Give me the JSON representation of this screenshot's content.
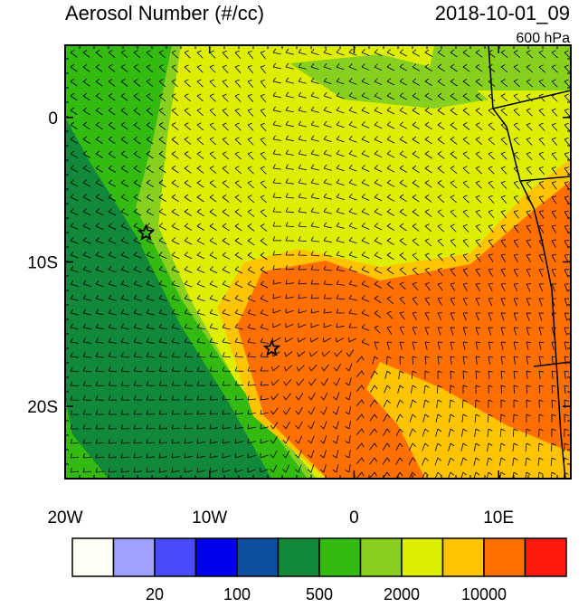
{
  "title": "Aerosol Number (#/cc)",
  "time": "2018-10-01_09",
  "level": "600 hPa",
  "map": {
    "xlim": [
      -20,
      15
    ],
    "ylim": [
      -25,
      5
    ],
    "xticks": [
      {
        "value": -20,
        "label": "20W"
      },
      {
        "value": -10,
        "label": "10W"
      },
      0,
      {
        "value": 10,
        "label": "10E"
      }
    ],
    "yticks": [
      0,
      {
        "value": -10,
        "label": "10S"
      },
      {
        "value": -20,
        "label": "20S"
      }
    ],
    "markers": [
      {
        "lon": -14.4,
        "lat": -8
      },
      {
        "lon": -5.7,
        "lat": -16
      }
    ]
  },
  "colorbar": {
    "colors": [
      "#fffff8",
      "#a0a0ff",
      "#4a4aff",
      "#0000ee",
      "#0a4fa0",
      "#11883a",
      "#33bb11",
      "#88d020",
      "#ddee00",
      "#ffc400",
      "#ff7000",
      "#ff1a10"
    ],
    "labels": [
      20,
      100,
      500,
      2000,
      10000
    ]
  }
}
